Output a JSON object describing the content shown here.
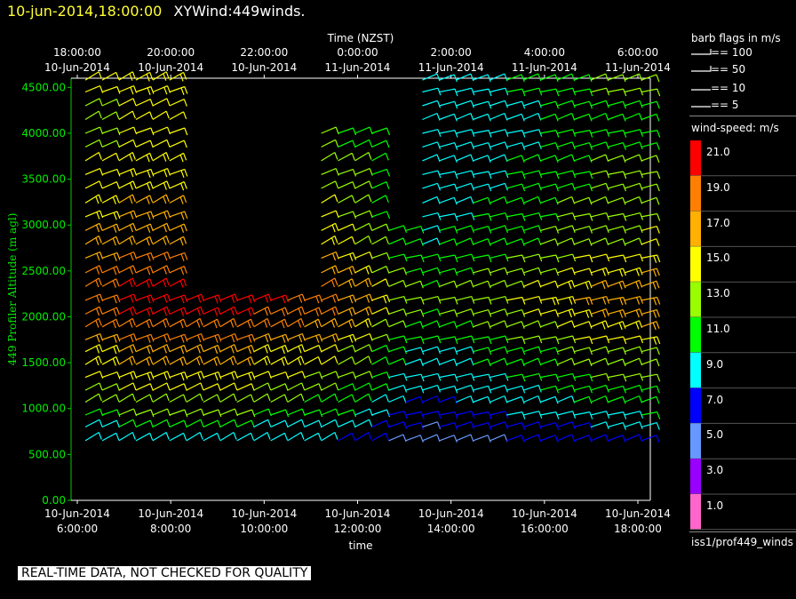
{
  "header": {
    "datetime": "10-jun-2014,18:00:00",
    "title": "XYWind:449winds."
  },
  "chart_data": {
    "type": "wind-barb time-height",
    "top_axis_label": "Time (NZST)",
    "top_ticks": [
      {
        "time": "18:00:00",
        "date": "10-Jun-2014"
      },
      {
        "time": "20:00:00",
        "date": "10-Jun-2014"
      },
      {
        "time": "22:00:00",
        "date": "10-Jun-2014"
      },
      {
        "time": "0:00:00",
        "date": "11-Jun-2014"
      },
      {
        "time": "2:00:00",
        "date": "11-Jun-2014"
      },
      {
        "time": "4:00:00",
        "date": "11-Jun-2014"
      },
      {
        "time": "6:00:00",
        "date": "11-Jun-2014"
      }
    ],
    "bottom_axis_label": "time",
    "bottom_ticks": [
      {
        "date": "10-Jun-2014",
        "time": "6:00:00"
      },
      {
        "date": "10-Jun-2014",
        "time": "8:00:00"
      },
      {
        "date": "10-Jun-2014",
        "time": "10:00:00"
      },
      {
        "date": "10-Jun-2014",
        "time": "12:00:00"
      },
      {
        "date": "10-Jun-2014",
        "time": "14:00:00"
      },
      {
        "date": "10-Jun-2014",
        "time": "16:00:00"
      },
      {
        "date": "10-Jun-2014",
        "time": "18:00:00"
      }
    ],
    "ylabel": "449 Profiler Altitude (m agl)",
    "yticks": [
      "4500.00",
      "4000.00",
      "3500.00",
      "3000.00",
      "2500.00",
      "2000.00",
      "1500.00",
      "1000.00",
      "500.00",
      "0.00"
    ],
    "ylim": [
      0,
      4600
    ],
    "altitudes": [
      650,
      800,
      930,
      1070,
      1200,
      1340,
      1480,
      1620,
      1750,
      1890,
      2030,
      2180,
      2330,
      2480,
      2640,
      2790,
      2940,
      3090,
      3240,
      3400,
      3550,
      3700,
      3850,
      4000,
      4150,
      4300,
      4450,
      4580
    ],
    "profile_count": 34,
    "wind_speed_rows": [
      9,
      10,
      12,
      13,
      14,
      15,
      16,
      16,
      18,
      19,
      20,
      21,
      20,
      19,
      18,
      17,
      17,
      16,
      16,
      15,
      15,
      15,
      14,
      14,
      14,
      14,
      15,
      15
    ],
    "wind_speed_cols": [
      0.95,
      0.95,
      1.0,
      1.0,
      1.0,
      1.0,
      1.0,
      1.0,
      1.0,
      1.0,
      0.98,
      0.98,
      0.95,
      0.92,
      0.9,
      0.85,
      0.8,
      0.72,
      0.65,
      0.6,
      0.58,
      0.6,
      0.62,
      0.65,
      0.65,
      0.68,
      0.7,
      0.72,
      0.75,
      0.78,
      0.8,
      0.8,
      0.82,
      0.85
    ],
    "gaps": [
      {
        "from_profile": 6,
        "to_profile": 13,
        "above_m": 2200
      },
      {
        "from_profile": 13,
        "to_profile": 17,
        "above_m": 4100
      },
      {
        "from_profile": 18,
        "to_profile": 19,
        "above_m": 3000
      }
    ]
  },
  "legend": {
    "barb_title": "barb flags in m/s",
    "barb_items": [
      "== 100",
      "== 50",
      "== 10",
      "== 5"
    ],
    "speed_title": "wind-speed: m/s",
    "colorbar": [
      {
        "label": "21.0",
        "color": "#ff0000"
      },
      {
        "label": "19.0",
        "color": "#ff8000"
      },
      {
        "label": "17.0",
        "color": "#ffb000"
      },
      {
        "label": "15.0",
        "color": "#ffff00"
      },
      {
        "label": "13.0",
        "color": "#99ff00"
      },
      {
        "label": "11.0",
        "color": "#00ff00"
      },
      {
        "label": "9.0",
        "color": "#00ffff"
      },
      {
        "label": "7.0",
        "color": "#0000ff"
      },
      {
        "label": "5.0",
        "color": "#6699ff"
      },
      {
        "label": "3.0",
        "color": "#9900ff"
      },
      {
        "label": "1.0",
        "color": "#ff66cc"
      }
    ],
    "source_tag": "iss1/prof449_winds"
  },
  "warning": "REAL-TIME DATA, NOT CHECKED FOR QUALITY"
}
